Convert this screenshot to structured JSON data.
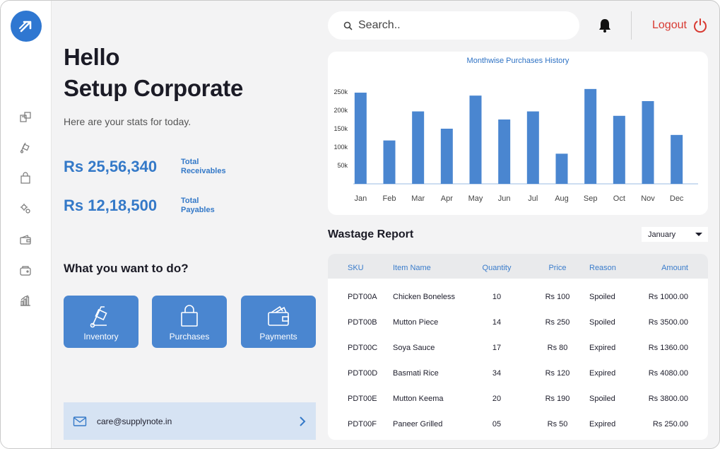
{
  "greeting": {
    "line1": "Hello",
    "line2": "Setup Corporate",
    "subtitle": "Here are your stats for today."
  },
  "stats": [
    {
      "value": "Rs 25,56,340",
      "label_line1": "Total",
      "label_line2": "Receivables"
    },
    {
      "value": "Rs 12,18,500",
      "label_line1": "Total",
      "label_line2": "Payables"
    }
  ],
  "actions": {
    "heading": "What you want to do?",
    "items": [
      "Inventory",
      "Purchases",
      "Payments"
    ]
  },
  "contact": {
    "email": "care@supplynote.in"
  },
  "search": {
    "placeholder": "Search.."
  },
  "header": {
    "logout_label": "Logout"
  },
  "colors": {
    "accent": "#3479c8",
    "action_tile": "#4a86d0",
    "logout": "#d83a32",
    "bar": "#4a86d0"
  },
  "chart_data": {
    "type": "bar",
    "title": "Monthwise Purchases History",
    "categories": [
      "Jan",
      "Feb",
      "Mar",
      "Apr",
      "May",
      "Jun",
      "Jul",
      "Aug",
      "Sep",
      "Oct",
      "Nov",
      "Dec"
    ],
    "values": [
      248000,
      118000,
      197000,
      150000,
      240000,
      175000,
      197000,
      82000,
      258000,
      185000,
      225000,
      133000
    ],
    "y_ticks": [
      "50k",
      "100k",
      "150k",
      "200k",
      "250k"
    ],
    "tick_values": [
      50000,
      100000,
      150000,
      200000,
      250000
    ],
    "xlabel": "",
    "ylabel": "",
    "ylim": [
      0,
      250000
    ],
    "grid": false,
    "legend": "none"
  },
  "wastage": {
    "title": "Wastage Report",
    "month": "January",
    "columns": [
      "SKU",
      "Item Name",
      "Quantity",
      "Price",
      "Reason",
      "Amount"
    ],
    "rows": [
      [
        "PDT00A",
        "Chicken Boneless",
        "10",
        "Rs 100",
        "Spoiled",
        "Rs 1000.00"
      ],
      [
        "PDT00B",
        "Mutton Piece",
        "14",
        "Rs 250",
        "Spoiled",
        "Rs 3500.00"
      ],
      [
        "PDT00C",
        "Soya Sauce",
        "17",
        "Rs 80",
        "Expired",
        "Rs 1360.00"
      ],
      [
        "PDT00D",
        "Basmati Rice",
        "34",
        "Rs 120",
        "Expired",
        "Rs 4080.00"
      ],
      [
        "PDT00E",
        "Mutton Keema",
        "20",
        "Rs 190",
        "Spoiled",
        "Rs 3800.00"
      ],
      [
        "PDT00F",
        "Paneer Grilled",
        "05",
        "Rs 50",
        "Expired",
        "Rs 250.00"
      ]
    ]
  }
}
